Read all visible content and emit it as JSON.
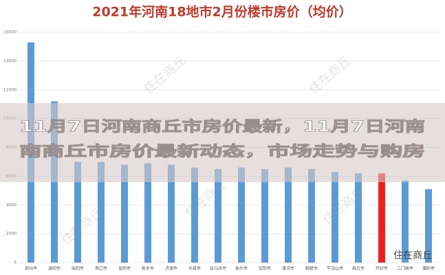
{
  "chart_data": {
    "type": "bar",
    "title": "2021年河南18地市2月份楼市房价（均价）",
    "categories": [
      "郑州市",
      "洛阳市",
      "南阳市",
      "周口市",
      "信阳市",
      "新乡市",
      "济源市",
      "许昌市",
      "驻马店市",
      "焦作市",
      "安阳市",
      "漯河市",
      "鹤壁市",
      "平顶山市",
      "商丘市",
      "开封市",
      "三门峡市",
      "濮阳市"
    ],
    "values": [
      15300,
      11200,
      7000,
      7000,
      6800,
      6900,
      6800,
      6600,
      6500,
      6600,
      6500,
      6600,
      6500,
      6300,
      6200,
      6200,
      5700,
      5100
    ],
    "colors": [
      "#5b9bd5",
      "#5b9bd5",
      "#5b9bd5",
      "#5b9bd5",
      "#5b9bd5",
      "#5b9bd5",
      "#5b9bd5",
      "#5b9bd5",
      "#5b9bd5",
      "#5b9bd5",
      "#5b9bd5",
      "#5b9bd5",
      "#5b9bd5",
      "#5b9bd5",
      "#5b9bd5",
      "#e8231f",
      "#5b9bd5",
      "#5b9bd5"
    ],
    "ylim": [
      0,
      16000
    ],
    "yticks": [
      0,
      2000,
      4000,
      6000,
      8000,
      10000,
      12000,
      14000,
      16000
    ],
    "grid": true,
    "overlay_lines": [
      "11月7日河南商丘市房价最新，11月7日河南",
      "南商丘市房价最新动态，市场走势与购房"
    ],
    "watermark": "住在商丘"
  }
}
